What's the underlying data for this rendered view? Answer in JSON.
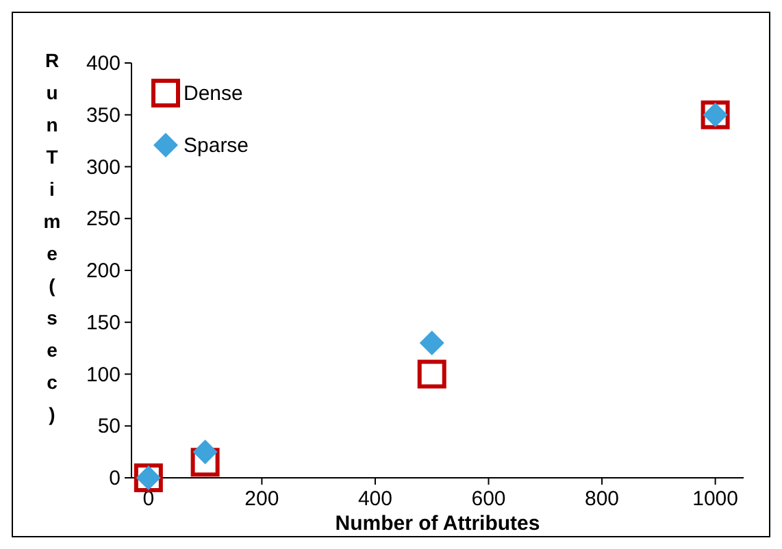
{
  "chart_data": {
    "type": "scatter",
    "xlabel": "Number of Attributes",
    "ylabel": "Run Time(sec)",
    "xlim": [
      -30,
      1050
    ],
    "xticks": [
      0,
      200,
      400,
      600,
      800,
      1000
    ],
    "ylim": [
      0,
      400
    ],
    "yticks": [
      0,
      50,
      100,
      150,
      200,
      250,
      300,
      350,
      400
    ],
    "grid": false,
    "legend": "top left",
    "series": [
      {
        "name": "Dense",
        "color": "#c00000",
        "marker": "square",
        "x": [
          0,
          100,
          500,
          1000
        ],
        "values": [
          0,
          15,
          100,
          350
        ]
      },
      {
        "name": "Sparse",
        "color": "#3fa3dc",
        "marker": "diamond",
        "x": [
          0,
          100,
          500,
          1000
        ],
        "values": [
          0,
          25,
          130,
          350
        ]
      }
    ]
  }
}
